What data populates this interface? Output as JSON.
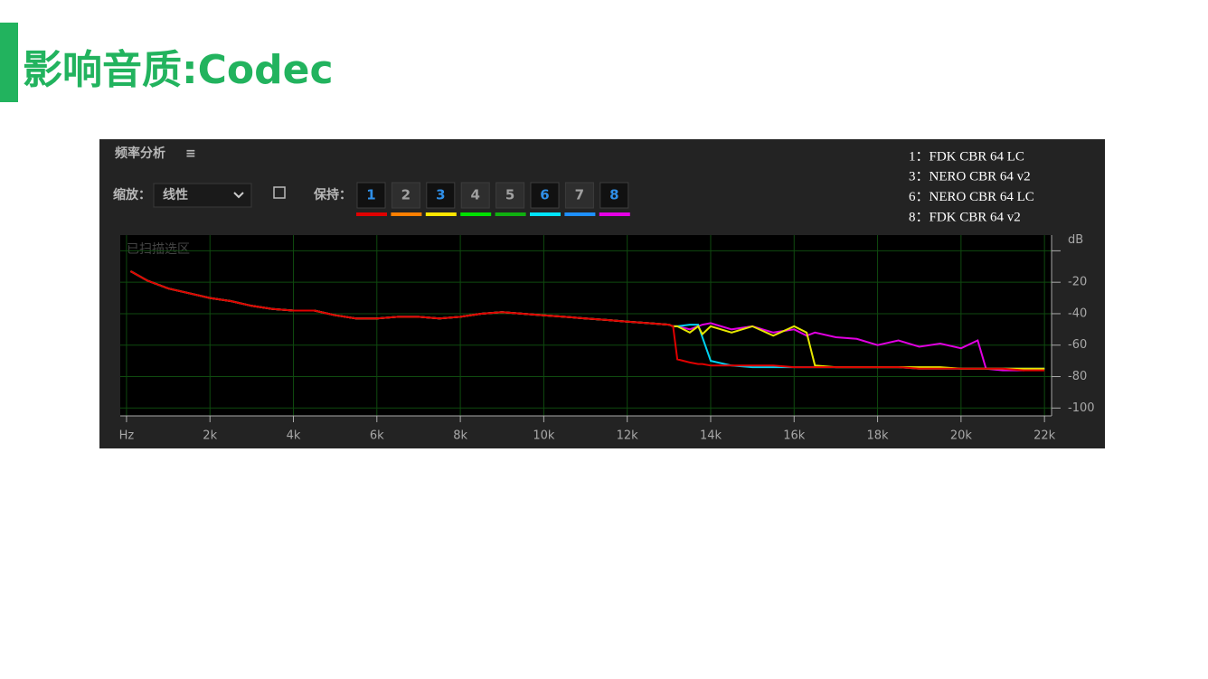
{
  "title": "影响音质:Codec",
  "panel": {
    "title": "频率分析",
    "menu": "≡",
    "zoom_label": "缩放：",
    "zoom_value": "线性",
    "hold_label": "保持：",
    "hold_buttons": [
      "1",
      "2",
      "3",
      "4",
      "5",
      "6",
      "7",
      "8"
    ],
    "hold_active": [
      true,
      false,
      true,
      false,
      false,
      true,
      false,
      true
    ],
    "hold_colors": [
      "#e00000",
      "#ff7f00",
      "#ffe600",
      "#00e000",
      "#10b010",
      "#00e5ff",
      "#1e90ff",
      "#e600e6"
    ],
    "scanned_label": "已扫描选区"
  },
  "chart_data": {
    "type": "line",
    "x": [
      100,
      500,
      1000,
      1500,
      2000,
      2500,
      3000,
      3500,
      4000,
      4500,
      5000,
      5500,
      6000,
      6500,
      7000,
      7500,
      8000,
      8500,
      9000,
      9500,
      10000,
      10500,
      11000,
      11500,
      12000,
      12500,
      13000,
      13100,
      13200,
      13500,
      13700,
      13800,
      14000,
      14500,
      15000,
      15500,
      16000,
      16300,
      16500,
      17000,
      17500,
      18000,
      18500,
      19000,
      19500,
      20000,
      20400,
      20600,
      21000,
      21500,
      22000
    ],
    "series": [
      {
        "name": "1：FDK CBR 64 LC",
        "color": "#e00000",
        "values": [
          -13,
          -19,
          -24,
          -27,
          -30,
          -32,
          -35,
          -37,
          -38,
          -38,
          -41,
          -43,
          -43,
          -42,
          -42,
          -43,
          -42,
          -40,
          -39,
          -40,
          -41,
          -42,
          -43,
          -44,
          -45,
          -46,
          -47,
          -48,
          -69,
          -71,
          -72,
          -72,
          -73,
          -73,
          -73,
          -73,
          -74,
          -74,
          -74,
          -74,
          -74,
          -74,
          -74,
          -75,
          -75,
          -75,
          -75,
          -75,
          -75,
          -76,
          -76
        ]
      },
      {
        "name": "3：NERO CBR 64 v2",
        "color": "#e6e600",
        "values": [
          -13,
          -19,
          -24,
          -27,
          -30,
          -32,
          -35,
          -37,
          -38,
          -38,
          -41,
          -43,
          -43,
          -42,
          -42,
          -43,
          -42,
          -40,
          -39,
          -40,
          -41,
          -42,
          -43,
          -44,
          -45,
          -46,
          -47,
          -48,
          -48,
          -52,
          -48,
          -53,
          -48,
          -52,
          -48,
          -54,
          -48,
          -52,
          -73,
          -74,
          -74,
          -74,
          -74,
          -74,
          -74,
          -75,
          -75,
          -75,
          -75,
          -75,
          -75
        ]
      },
      {
        "name": "6：NERO CBR 64 LC",
        "color": "#00d0f0",
        "values": [
          -13,
          -19,
          -24,
          -27,
          -30,
          -32,
          -35,
          -37,
          -38,
          -38,
          -41,
          -43,
          -43,
          -42,
          -42,
          -43,
          -42,
          -40,
          -39,
          -40,
          -41,
          -42,
          -43,
          -44,
          -45,
          -46,
          -47,
          -48,
          -48,
          -47,
          -47,
          -55,
          -70,
          -73,
          -74,
          -74,
          -74,
          -74,
          -74,
          -74,
          -74,
          -74,
          -74,
          -75,
          -75,
          -75,
          -75,
          -75,
          -75,
          -75,
          -75
        ]
      },
      {
        "name": "8：FDK CBR 64 v2",
        "color": "#e000e0",
        "values": [
          -13,
          -19,
          -24,
          -27,
          -30,
          -32,
          -35,
          -37,
          -38,
          -38,
          -41,
          -43,
          -43,
          -42,
          -42,
          -43,
          -42,
          -40,
          -39,
          -40,
          -41,
          -42,
          -43,
          -44,
          -45,
          -46,
          -47,
          -48,
          -48,
          -50,
          -48,
          -47,
          -46,
          -50,
          -48,
          -52,
          -50,
          -54,
          -52,
          -55,
          -56,
          -60,
          -57,
          -61,
          -59,
          -62,
          -57,
          -75,
          -76,
          -76,
          -75
        ]
      }
    ],
    "xlim": [
      -150,
      22170
    ],
    "xticks": [
      {
        "value": 0,
        "label": "Hz"
      },
      {
        "value": 2000,
        "label": "2k"
      },
      {
        "value": 4000,
        "label": "4k"
      },
      {
        "value": 6000,
        "label": "6k"
      },
      {
        "value": 8000,
        "label": "8k"
      },
      {
        "value": 10000,
        "label": "10k"
      },
      {
        "value": 12000,
        "label": "12k"
      },
      {
        "value": 14000,
        "label": "14k"
      },
      {
        "value": 16000,
        "label": "16k"
      },
      {
        "value": 18000,
        "label": "18k"
      },
      {
        "value": 20000,
        "label": "20k"
      },
      {
        "value": 22000,
        "label": "22k"
      }
    ],
    "ylim": [
      -105,
      10
    ],
    "yticks": [
      {
        "value": 0,
        "label": "dB"
      },
      -20,
      -40,
      -60,
      -80,
      -100
    ],
    "grid": true
  }
}
